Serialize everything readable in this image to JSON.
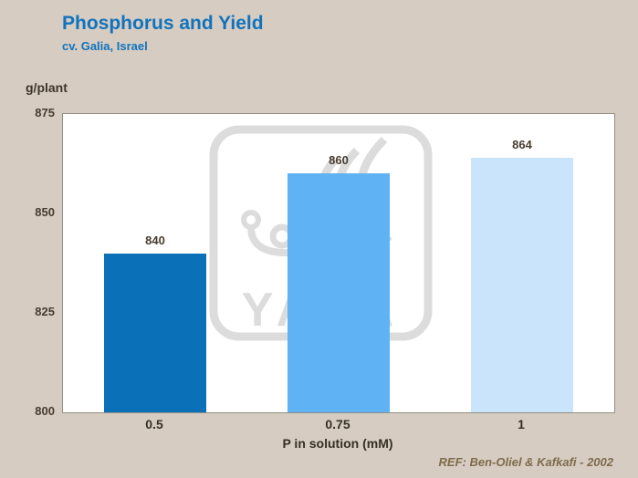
{
  "header": {
    "title": "Phosphorus and Yield",
    "subtitle": "cv. Galia, Israel"
  },
  "axes": {
    "y_unit": "g/plant",
    "x_title": "P in solution (mM)"
  },
  "footer": {
    "reference": "REF: Ben-Oliel & Kafkafi - 2002"
  },
  "colors": {
    "background": "#d6ccc1",
    "title_blue": "#1173bd",
    "plot_background": "#ffffff",
    "plot_border": "#938d84",
    "label_dark": "#463d2f",
    "reference_brown": "#7d6b4a",
    "watermark_gray": "#dcdcdc"
  },
  "chart_data": {
    "type": "bar",
    "title": "Phosphorus and Yield",
    "subtitle": "cv. Galia, Israel",
    "categories": [
      "0.5",
      "0.75",
      "1"
    ],
    "values": [
      840,
      860,
      864
    ],
    "data_labels": [
      "840",
      "860",
      "864"
    ],
    "xlabel": "P in solution (mM)",
    "ylabel": "g/plant",
    "ylim": [
      800,
      875
    ],
    "y_ticks": [
      875,
      850,
      825,
      800
    ],
    "grid": false,
    "legend": false,
    "bar_colors": [
      "#0a71b8",
      "#5fb2f3",
      "#c9e4fb"
    ],
    "watermark": "YARA"
  }
}
